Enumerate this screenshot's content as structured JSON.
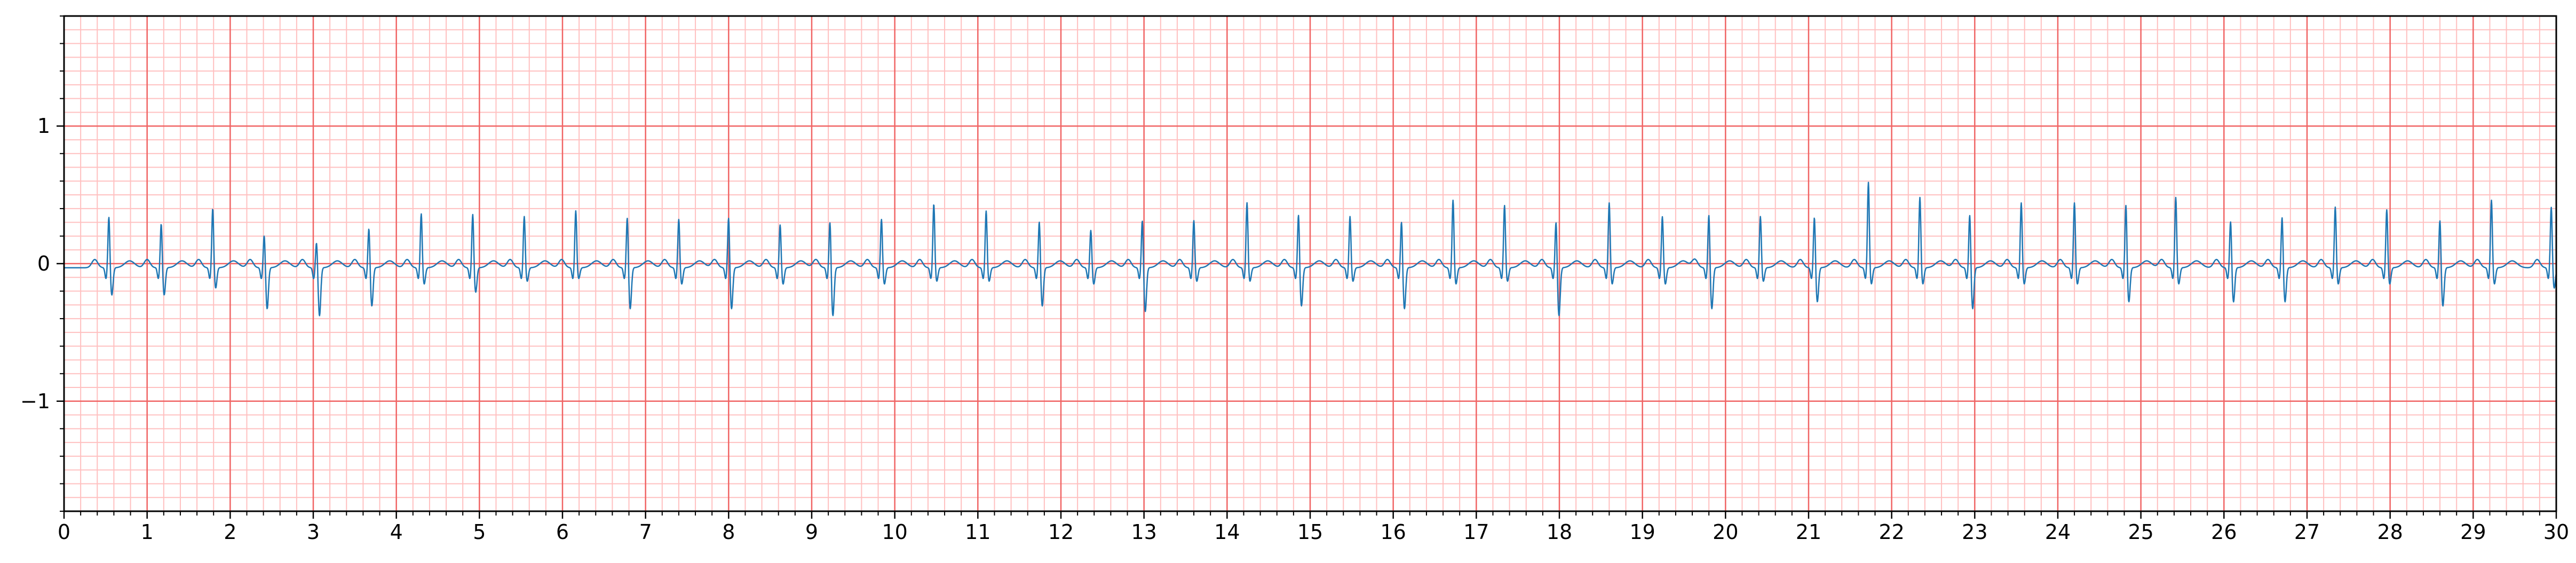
{
  "chart_data": {
    "type": "line",
    "title": "",
    "xlabel": "",
    "ylabel": "",
    "xlim": [
      0,
      30
    ],
    "ylim": [
      -1.8,
      1.8
    ],
    "x_major_ticks": [
      0,
      1,
      2,
      3,
      4,
      5,
      6,
      7,
      8,
      9,
      10,
      11,
      12,
      13,
      14,
      15,
      16,
      17,
      18,
      19,
      20,
      21,
      22,
      23,
      24,
      25,
      26,
      27,
      28,
      29,
      30
    ],
    "x_tick_labels": [
      "0",
      "1",
      "2",
      "3",
      "4",
      "5",
      "6",
      "7",
      "8",
      "9",
      "10",
      "11",
      "12",
      "13",
      "14",
      "15",
      "16",
      "17",
      "18",
      "19",
      "20",
      "21",
      "22",
      "23",
      "24",
      "25",
      "26",
      "27",
      "28",
      "29",
      "30"
    ],
    "y_major_ticks": [
      -1,
      0,
      1
    ],
    "y_tick_labels": [
      "−1",
      "0",
      "1"
    ],
    "grid": {
      "major": true,
      "minor": true,
      "major_x_step": 1,
      "minor_x_step": 0.2,
      "major_y_step": 1,
      "minor_y_step": 0.1
    },
    "colors": {
      "major_grid": "#f06464",
      "minor_grid": "#ffc0c0",
      "line": "#1f77b4",
      "axes": "#000000"
    },
    "series": [
      {
        "name": "",
        "beats": [
          {
            "t": 0.54,
            "r": 0.38,
            "s": -0.2
          },
          {
            "t": 1.17,
            "r": 0.33,
            "s": -0.2
          },
          {
            "t": 1.79,
            "r": 0.44,
            "s": -0.15
          },
          {
            "t": 2.41,
            "r": 0.25,
            "s": -0.3
          },
          {
            "t": 3.04,
            "r": 0.2,
            "s": -0.35
          },
          {
            "t": 3.67,
            "r": 0.3,
            "s": -0.28
          },
          {
            "t": 4.3,
            "r": 0.4,
            "s": -0.12
          },
          {
            "t": 4.92,
            "r": 0.4,
            "s": -0.18
          },
          {
            "t": 5.54,
            "r": 0.38,
            "s": -0.1
          },
          {
            "t": 6.16,
            "r": 0.42,
            "s": -0.08
          },
          {
            "t": 6.78,
            "r": 0.38,
            "s": -0.3
          },
          {
            "t": 7.4,
            "r": 0.36,
            "s": -0.12
          },
          {
            "t": 8.0,
            "r": 0.38,
            "s": -0.3
          },
          {
            "t": 8.62,
            "r": 0.32,
            "s": -0.12
          },
          {
            "t": 9.22,
            "r": 0.35,
            "s": -0.35
          },
          {
            "t": 9.84,
            "r": 0.36,
            "s": -0.12
          },
          {
            "t": 10.47,
            "r": 0.47,
            "s": -0.1
          },
          {
            "t": 11.1,
            "r": 0.42,
            "s": -0.1
          },
          {
            "t": 11.74,
            "r": 0.35,
            "s": -0.28
          },
          {
            "t": 12.36,
            "r": 0.28,
            "s": -0.12
          },
          {
            "t": 12.98,
            "r": 0.36,
            "s": -0.32
          },
          {
            "t": 13.6,
            "r": 0.35,
            "s": -0.1
          },
          {
            "t": 14.24,
            "r": 0.48,
            "s": -0.1
          },
          {
            "t": 14.86,
            "r": 0.4,
            "s": -0.28
          },
          {
            "t": 15.48,
            "r": 0.38,
            "s": -0.1
          },
          {
            "t": 16.1,
            "r": 0.35,
            "s": -0.3
          },
          {
            "t": 16.72,
            "r": 0.5,
            "s": -0.12
          },
          {
            "t": 17.34,
            "r": 0.46,
            "s": -0.1
          },
          {
            "t": 17.96,
            "r": 0.35,
            "s": -0.35
          },
          {
            "t": 18.6,
            "r": 0.48,
            "s": -0.12
          },
          {
            "t": 19.24,
            "r": 0.38,
            "s": -0.12
          },
          {
            "t": 19.8,
            "r": 0.4,
            "s": -0.3
          },
          {
            "t": 20.42,
            "r": 0.38,
            "s": -0.1
          },
          {
            "t": 21.07,
            "r": 0.38,
            "s": -0.25
          },
          {
            "t": 21.72,
            "r": 0.63,
            "s": -0.12
          },
          {
            "t": 22.34,
            "r": 0.52,
            "s": -0.12
          },
          {
            "t": 22.94,
            "r": 0.4,
            "s": -0.3
          },
          {
            "t": 23.56,
            "r": 0.48,
            "s": -0.12
          },
          {
            "t": 24.2,
            "r": 0.48,
            "s": -0.12
          },
          {
            "t": 24.82,
            "r": 0.47,
            "s": -0.25
          },
          {
            "t": 25.42,
            "r": 0.52,
            "s": -0.12
          },
          {
            "t": 26.08,
            "r": 0.35,
            "s": -0.25
          },
          {
            "t": 26.7,
            "r": 0.38,
            "s": -0.25
          },
          {
            "t": 27.34,
            "r": 0.45,
            "s": -0.12
          },
          {
            "t": 27.96,
            "r": 0.43,
            "s": -0.12
          },
          {
            "t": 28.6,
            "r": 0.36,
            "s": -0.28
          },
          {
            "t": 29.22,
            "r": 0.5,
            "s": -0.12
          },
          {
            "t": 29.94,
            "r": 0.45,
            "s": -0.15
          }
        ]
      }
    ]
  }
}
